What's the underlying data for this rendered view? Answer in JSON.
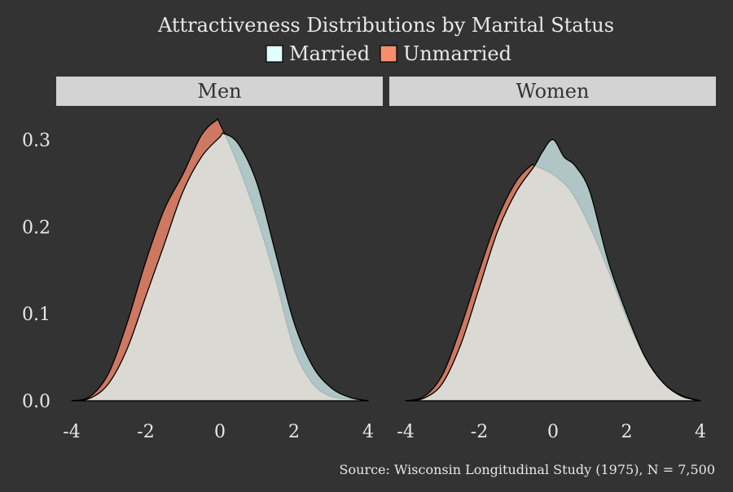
{
  "chart_data": {
    "type": "area",
    "title": "Attractiveness Distributions by Marital Status",
    "caption": "Source: Wisconsin Longitudinal Study (1975), N = 7,500",
    "legend": {
      "placement": "top",
      "entries": [
        {
          "label": "Married",
          "color": "#e0ffff"
        },
        {
          "label": "Unmarried",
          "color": "#fa8c6e"
        }
      ]
    },
    "panels": [
      {
        "title": "Men",
        "series": [
          {
            "name": "Unmarried",
            "x": [
              -4.0,
              -3.5,
              -3.0,
              -2.5,
              -2.0,
              -1.5,
              -1.0,
              -0.5,
              -0.1,
              0.0,
              0.5,
              1.0,
              1.5,
              2.0,
              2.5,
              3.0,
              3.5,
              4.0
            ],
            "y": [
              0.0,
              0.005,
              0.032,
              0.09,
              0.16,
              0.22,
              0.26,
              0.305,
              0.322,
              0.318,
              0.27,
              0.21,
              0.14,
              0.06,
              0.02,
              0.005,
              0.002,
              0.0
            ]
          },
          {
            "name": "Married",
            "x": [
              -4.0,
              -3.5,
              -3.0,
              -2.5,
              -2.0,
              -1.5,
              -1.0,
              -0.5,
              0.0,
              0.1,
              0.5,
              1.0,
              1.5,
              2.0,
              2.5,
              3.0,
              3.5,
              4.0
            ],
            "y": [
              0.0,
              0.003,
              0.02,
              0.06,
              0.12,
              0.18,
              0.24,
              0.28,
              0.303,
              0.307,
              0.295,
              0.25,
              0.17,
              0.09,
              0.04,
              0.015,
              0.004,
              0.0
            ]
          }
        ]
      },
      {
        "title": "Women",
        "series": [
          {
            "name": "Unmarried",
            "x": [
              -4.0,
              -3.5,
              -3.0,
              -2.5,
              -2.0,
              -1.5,
              -1.0,
              -0.6,
              -0.5,
              0.0,
              0.5,
              1.0,
              1.5,
              2.0,
              2.5,
              3.0,
              3.5,
              4.0
            ],
            "y": [
              0.0,
              0.005,
              0.03,
              0.085,
              0.15,
              0.21,
              0.252,
              0.27,
              0.27,
              0.26,
              0.24,
              0.2,
              0.15,
              0.095,
              0.05,
              0.02,
              0.006,
              0.0
            ]
          },
          {
            "name": "Married",
            "x": [
              -4.0,
              -3.5,
              -3.0,
              -2.5,
              -2.0,
              -1.5,
              -1.0,
              -0.5,
              -0.3,
              0.0,
              0.3,
              0.6,
              1.0,
              1.5,
              2.0,
              2.5,
              3.0,
              3.5,
              4.0
            ],
            "y": [
              0.0,
              0.003,
              0.02,
              0.065,
              0.13,
              0.195,
              0.24,
              0.27,
              0.285,
              0.3,
              0.28,
              0.27,
              0.24,
              0.16,
              0.1,
              0.05,
              0.02,
              0.005,
              0.0
            ]
          }
        ]
      }
    ],
    "x_axis": {
      "range": [
        -4,
        4
      ],
      "ticks": [
        -4,
        -2,
        0,
        2,
        4
      ],
      "tick_labels": [
        "-4",
        "-2",
        "0",
        "2",
        "4"
      ]
    },
    "y_axis": {
      "range": [
        0,
        0.32
      ],
      "ticks": [
        0.0,
        0.1,
        0.2,
        0.3
      ],
      "tick_labels": [
        "0.0",
        "0.1",
        "0.2",
        "0.3"
      ]
    },
    "grid": false,
    "colors": {
      "background": "#333333",
      "strip": "#d3d3d3",
      "text": "#e8e8e8",
      "strip_text": "#333333",
      "outline": "#000000"
    }
  }
}
